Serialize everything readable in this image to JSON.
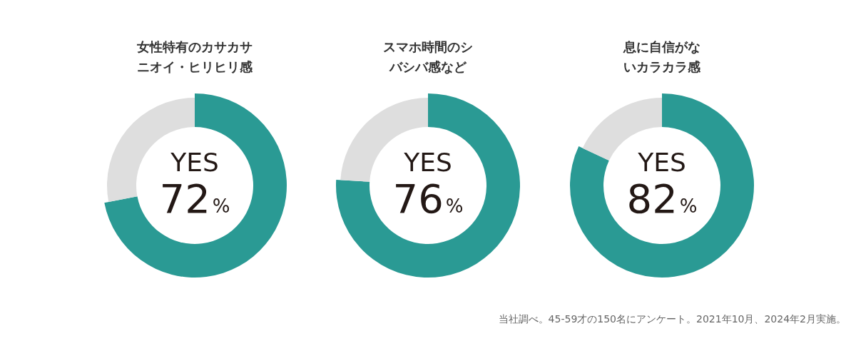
{
  "chart_data": [
    {
      "type": "donut",
      "title": "女性特有のカサカサニオイ・ヒリヒリ感",
      "categories": [
        "YES",
        null
      ],
      "values": [
        72,
        28
      ],
      "colors": [
        "#2a9a94",
        "#dedede"
      ],
      "value_labels": [
        "72%",
        null
      ]
    },
    {
      "type": "donut",
      "title": "スマホ時間のシバシバ感など",
      "categories": [
        "YES",
        null
      ],
      "values": [
        76,
        24
      ],
      "colors": [
        "#2a9a94",
        "#dedede"
      ],
      "value_labels": [
        "76%",
        null
      ]
    },
    {
      "type": "donut",
      "title": "息に自信がないカラカラ感",
      "categories": [
        "YES",
        null
      ],
      "values": [
        82,
        18
      ],
      "colors": [
        "#2a9a94",
        "#dedede"
      ],
      "value_labels": [
        "82%",
        null
      ],
      "annotations": [
        "当社調べ。45-59才の150名にアンケート。2021年10月、2024年2月実施。"
      ]
    }
  ]
}
